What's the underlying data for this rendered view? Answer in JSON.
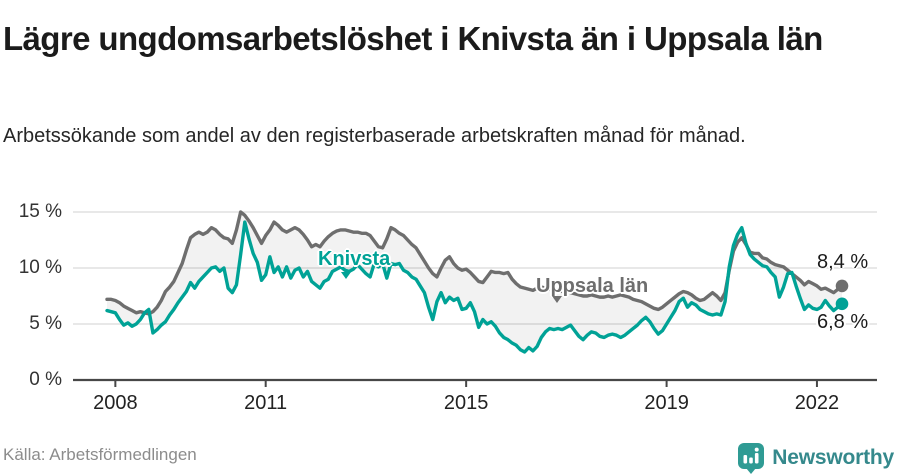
{
  "header": {
    "title": "Lägre ungdomsarbetslöshet i Knivsta än i Uppsala län",
    "subtitle": "Arbetssökande som andel av den registerbaserade arbetskraften månad för månad."
  },
  "footer": {
    "source": "Källa: Arbetsförmedlingen",
    "brand": "Newsworthy"
  },
  "colors": {
    "knivsta": "#00a296",
    "uppsala": "#6e6e6e",
    "band": "rgba(0,0,0,0.05)",
    "gridline": "#d9d9d9",
    "axis": "#474747",
    "brand_teal": "#2f9b94"
  },
  "chart_data": {
    "type": "line",
    "title": "Lägre ungdomsarbetslöshet i Knivsta än i Uppsala län",
    "subtitle": "Arbetssökande som andel av den registerbaserade arbetskraften månad för månad.",
    "source": "Källa: Arbetsförmedlingen",
    "frequency": "monthly",
    "x_start": "2007-11",
    "x_end": "2022-07",
    "ylim": [
      0,
      16
    ],
    "grid": "horizontal",
    "xticks": [
      2008,
      2011,
      2015,
      2019,
      2022
    ],
    "yticks": [
      {
        "label": "0 %",
        "value": 0
      },
      {
        "label": "5 %",
        "value": 5
      },
      {
        "label": "10 %",
        "value": 10
      },
      {
        "label": "15 %",
        "value": 15
      }
    ],
    "series": [
      {
        "name": "Uppsala län",
        "color": "#6e6e6e",
        "end_label": "8,4 %",
        "end_value": 8.4,
        "values": [
          7.2,
          7.2,
          7.1,
          6.9,
          6.6,
          6.4,
          6.2,
          6.0,
          6.1,
          6.0,
          5.9,
          6.1,
          6.5,
          7.1,
          7.9,
          8.3,
          8.8,
          9.6,
          10.4,
          11.6,
          12.7,
          13.0,
          13.2,
          13.0,
          13.2,
          13.6,
          13.4,
          13.0,
          12.7,
          12.6,
          12.2,
          13.4,
          15.0,
          14.7,
          14.2,
          13.6,
          12.9,
          12.2,
          12.9,
          13.4,
          14.1,
          13.8,
          13.4,
          13.2,
          13.4,
          13.6,
          13.4,
          13.0,
          12.5,
          11.9,
          12.1,
          11.9,
          12.4,
          12.8,
          13.1,
          13.3,
          13.4,
          13.4,
          13.3,
          13.2,
          13.2,
          13.1,
          13.1,
          12.9,
          12.4,
          11.9,
          11.8,
          12.6,
          13.6,
          13.4,
          13.1,
          12.9,
          12.5,
          12.1,
          11.8,
          11.2,
          10.6,
          10.0,
          9.5,
          9.2,
          10.0,
          10.7,
          11.0,
          10.4,
          10.0,
          9.8,
          9.9,
          9.6,
          9.2,
          8.8,
          8.7,
          9.2,
          9.7,
          9.6,
          9.6,
          9.5,
          9.6,
          9.0,
          8.6,
          8.3,
          8.2,
          8.1,
          8.0,
          8.2,
          8.3,
          8.2,
          8.1,
          8.0,
          8.0,
          7.9,
          7.9,
          7.8,
          7.7,
          7.6,
          7.5,
          7.5,
          7.6,
          7.5,
          7.4,
          7.4,
          7.5,
          7.4,
          7.5,
          7.6,
          7.5,
          7.4,
          7.2,
          7.1,
          7.0,
          6.8,
          6.6,
          6.4,
          6.3,
          6.5,
          6.8,
          7.1,
          7.4,
          7.7,
          7.9,
          7.8,
          7.6,
          7.3,
          7.1,
          7.2,
          7.5,
          7.8,
          7.5,
          7.1,
          7.8,
          9.8,
          11.5,
          12.3,
          12.7,
          12.1,
          11.4,
          11.3,
          11.3,
          10.9,
          10.8,
          10.5,
          10.3,
          10.2,
          10.1,
          9.8,
          9.5,
          9.2,
          8.9,
          8.5,
          8.8,
          8.6,
          8.4,
          8.1,
          8.2,
          8.0,
          7.8,
          8.1,
          8.4
        ]
      },
      {
        "name": "Knivsta",
        "color": "#00a296",
        "end_label": "6,8 %",
        "end_value": 6.8,
        "values": [
          6.2,
          6.1,
          6.0,
          5.4,
          4.9,
          5.1,
          4.8,
          5.0,
          5.4,
          6.0,
          6.3,
          4.2,
          4.5,
          4.9,
          5.2,
          5.8,
          6.3,
          6.9,
          7.4,
          7.9,
          8.7,
          8.2,
          8.8,
          9.2,
          9.6,
          10.0,
          10.1,
          9.7,
          10.0,
          8.2,
          7.8,
          8.5,
          11.2,
          14.1,
          12.6,
          11.3,
          10.5,
          8.9,
          9.4,
          11.0,
          9.6,
          10.1,
          9.2,
          10.1,
          9.1,
          9.8,
          10.0,
          9.2,
          9.7,
          8.8,
          8.5,
          8.2,
          8.8,
          9.0,
          9.7,
          9.9,
          10.1,
          9.8,
          9.7,
          9.9,
          10.3,
          9.9,
          9.5,
          9.2,
          10.4,
          10.1,
          10.4,
          9.1,
          10.4,
          10.3,
          10.4,
          9.8,
          9.6,
          9.2,
          9.0,
          8.4,
          7.8,
          6.5,
          5.4,
          7.0,
          7.8,
          6.9,
          7.4,
          7.1,
          7.3,
          6.3,
          6.4,
          6.9,
          6.1,
          4.7,
          5.4,
          5.0,
          5.2,
          4.8,
          4.2,
          3.8,
          3.6,
          3.3,
          3.1,
          2.7,
          2.5,
          2.9,
          2.6,
          3.0,
          3.8,
          4.3,
          4.6,
          4.5,
          4.6,
          4.5,
          4.7,
          4.9,
          4.4,
          3.9,
          3.6,
          4.0,
          4.3,
          4.2,
          3.9,
          3.8,
          4.0,
          4.1,
          4.0,
          3.8,
          4.0,
          4.3,
          4.6,
          4.9,
          5.3,
          5.6,
          5.2,
          4.6,
          4.1,
          4.4,
          5.0,
          5.6,
          6.2,
          7.0,
          7.3,
          6.5,
          6.9,
          6.7,
          6.3,
          6.1,
          5.9,
          5.8,
          5.9,
          5.8,
          7.0,
          10.1,
          12.0,
          13.0,
          13.6,
          12.2,
          11.2,
          10.8,
          10.5,
          10.2,
          10.1,
          9.6,
          9.2,
          7.4,
          8.3,
          9.5,
          9.6,
          8.4,
          7.3,
          6.3,
          6.7,
          6.4,
          6.3,
          6.5,
          7.1,
          6.6,
          6.2,
          6.5,
          6.8
        ]
      }
    ]
  }
}
